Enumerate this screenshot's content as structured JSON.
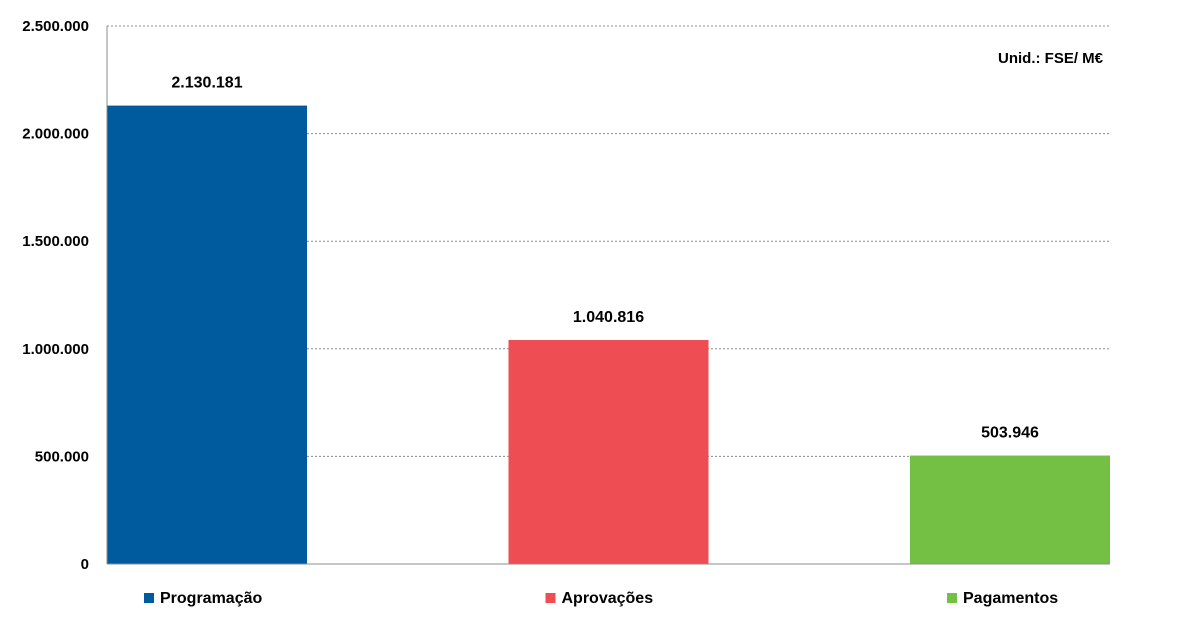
{
  "chart_data": {
    "type": "bar",
    "unit_note": "Unid.:  FSE/ M€",
    "categories": [
      "Programação",
      "Aprovações",
      "Pagamentos"
    ],
    "values": [
      2130181,
      1040816,
      503946
    ],
    "value_labels": [
      "2.130.181",
      "1.040.816",
      "503.946"
    ],
    "colors": [
      "#005a9e",
      "#ef4d54",
      "#74c044"
    ],
    "ylim": [
      0,
      2500000
    ],
    "yticks": [
      0,
      500000,
      1000000,
      1500000,
      2000000,
      2500000
    ],
    "ytick_labels": [
      "0",
      "500.000",
      "1.000.000",
      "1.500.000",
      "2.000.000",
      "2.500.000"
    ],
    "grid": true,
    "legend_position": "bottom"
  }
}
